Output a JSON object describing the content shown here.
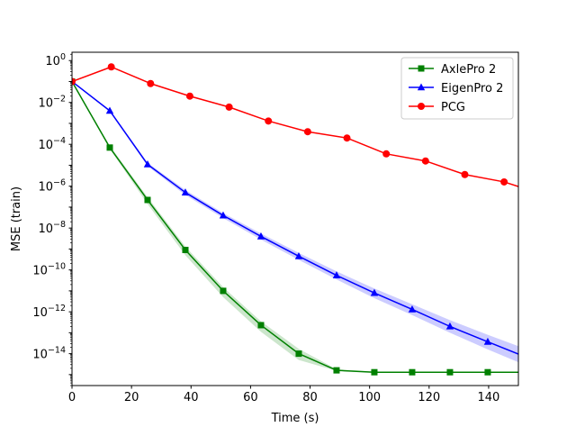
{
  "chart_data": {
    "type": "line",
    "title": "",
    "xlabel": "Time (s)",
    "ylabel": "MSE (train)",
    "xlim": [
      0,
      150
    ],
    "ylim": [
      3e-16,
      2.5
    ],
    "yscale": "log",
    "grid": false,
    "legend_position": "top-right",
    "xticks": [
      {
        "value": 0,
        "label": "0"
      },
      {
        "value": 20,
        "label": "20"
      },
      {
        "value": 40,
        "label": "40"
      },
      {
        "value": 60,
        "label": "60"
      },
      {
        "value": 80,
        "label": "80"
      },
      {
        "value": 100,
        "label": "100"
      },
      {
        "value": 120,
        "label": "120"
      },
      {
        "value": 140,
        "label": "140"
      }
    ],
    "yticks": [
      {
        "exp": 0,
        "base": "10",
        "sup": "0"
      },
      {
        "exp": -2,
        "base": "10",
        "sup": "−2"
      },
      {
        "exp": -4,
        "base": "10",
        "sup": "−4"
      },
      {
        "exp": -6,
        "base": "10",
        "sup": "−6"
      },
      {
        "exp": -8,
        "base": "10",
        "sup": "−8"
      },
      {
        "exp": -10,
        "base": "10",
        "sup": "−10"
      },
      {
        "exp": -12,
        "base": "10",
        "sup": "−12"
      },
      {
        "exp": -14,
        "base": "10",
        "sup": "−14"
      }
    ],
    "series": [
      {
        "name": "AxlePro 2",
        "color": "#008000",
        "marker": "square",
        "x": [
          0,
          12.7,
          25.4,
          38.1,
          50.8,
          63.5,
          76.2,
          88.9,
          101.6,
          114.3,
          127,
          139.7,
          152.4
        ],
        "y": [
          0.1,
          7e-05,
          2.2e-07,
          9e-10,
          1e-11,
          2.3e-13,
          1e-14,
          1.6e-15,
          1.3e-15,
          1.3e-15,
          1.3e-15,
          1.3e-15,
          1.3e-15
        ],
        "band_low": [
          0.1,
          6e-05,
          1.4e-07,
          5e-10,
          5e-12,
          1.1e-13,
          5e-15,
          1.5e-15,
          1.25e-15,
          1.25e-15,
          1.25e-15,
          1.25e-15,
          1.25e-15
        ],
        "band_high": [
          0.1,
          8.5e-05,
          3e-07,
          1.3e-09,
          1.5e-11,
          3.5e-13,
          1.7e-14,
          1.8e-15,
          1.4e-15,
          1.4e-15,
          1.4e-15,
          1.4e-15,
          1.4e-15
        ]
      },
      {
        "name": "EigenPro 2",
        "color": "#0000ff",
        "marker": "triangle",
        "x": [
          0,
          12.7,
          25.4,
          38.1,
          50.8,
          63.5,
          76.2,
          88.9,
          101.6,
          114.3,
          127,
          139.7,
          152.4
        ],
        "y": [
          0.1,
          0.004,
          1.1e-05,
          5e-07,
          4e-08,
          4e-09,
          4.5e-10,
          5.5e-11,
          8e-12,
          1.3e-12,
          2e-13,
          3.7e-14,
          7e-15
        ],
        "band_low": [
          0.1,
          0.0036,
          9e-06,
          3.8e-07,
          3e-08,
          2.8e-09,
          3e-10,
          3.5e-11,
          4.5e-12,
          7e-13,
          1e-13,
          1.6e-14,
          2.8e-15
        ],
        "band_high": [
          0.1,
          0.0044,
          1.3e-05,
          6.5e-07,
          5.2e-08,
          5.5e-09,
          6.5e-10,
          8.5e-11,
          1.3e-11,
          2.3e-12,
          4e-13,
          8e-14,
          1.7e-14
        ]
      },
      {
        "name": "PCG",
        "color": "#ff0000",
        "marker": "circle",
        "x": [
          0,
          13.2,
          26.4,
          39.6,
          52.8,
          66,
          79.2,
          92.4,
          105.6,
          118.8,
          132,
          145.2,
          158.4
        ],
        "y": [
          0.1,
          0.5,
          0.08,
          0.02,
          0.006,
          0.0013,
          0.0004,
          0.0002,
          3.5e-05,
          1.6e-05,
          3.6e-06,
          1.6e-06,
          4e-07
        ]
      }
    ]
  }
}
